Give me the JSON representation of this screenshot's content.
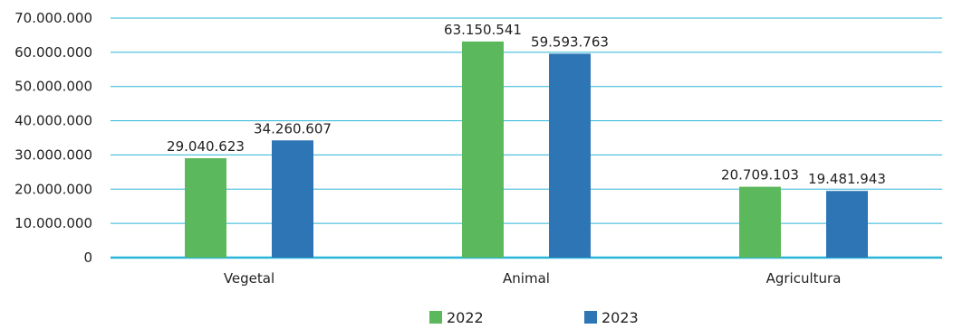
{
  "chart_data": {
    "type": "bar",
    "title": "",
    "xlabel": "",
    "ylabel": "",
    "categories": [
      "Vegetal",
      "Animal",
      "Agricultura"
    ],
    "series": [
      {
        "name": "2022",
        "color": "#5cb85c",
        "values": [
          29040623,
          63150541,
          20709103
        ],
        "labels": [
          "29.040.623",
          "63.150.541",
          "20.709.103"
        ]
      },
      {
        "name": "2023",
        "color": "#2e75b6",
        "values": [
          34260607,
          59593763,
          19481943
        ],
        "labels": [
          "34.260.607",
          "59.593.763",
          "19.481.943"
        ]
      }
    ],
    "ylim": [
      0,
      70000000
    ],
    "yticks": [
      0,
      10000000,
      20000000,
      30000000,
      40000000,
      50000000,
      60000000,
      70000000
    ],
    "ytick_labels": [
      "0",
      "10.000.000",
      "20.000.000",
      "30.000.000",
      "40.000.000",
      "50.000.000",
      "60.000.000",
      "70.000.000"
    ],
    "grid": true,
    "grid_color": "#29b5d8",
    "legend_position": "bottom"
  }
}
